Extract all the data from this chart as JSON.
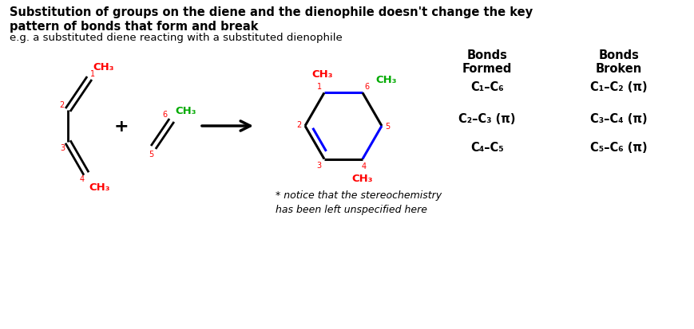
{
  "title_bold": "Substitution of groups on the diene and the dienophile doesn't change the key\npattern of bonds that form and break",
  "subtitle": "e.g. a substituted diene reacting with a substituted dienophile",
  "footnote": "* notice that the stereochemistry\nhas been left unspecified here",
  "bonds_formed_header": "Bonds\nFormed",
  "bonds_broken_header": "Bonds\nBroken",
  "bonds_formed": [
    "C₁–C₆",
    "C₂–C₃ (π)",
    "C₄–C₅"
  ],
  "bonds_broken": [
    "C₁–C₂ (π)",
    "C₃–C₄ (π)",
    "C₅–C₆ (π)"
  ],
  "color_red": "#ff0000",
  "color_green": "#00aa00",
  "color_black": "#000000",
  "color_blue": "#0000ff",
  "color_bg": "#ffffff"
}
